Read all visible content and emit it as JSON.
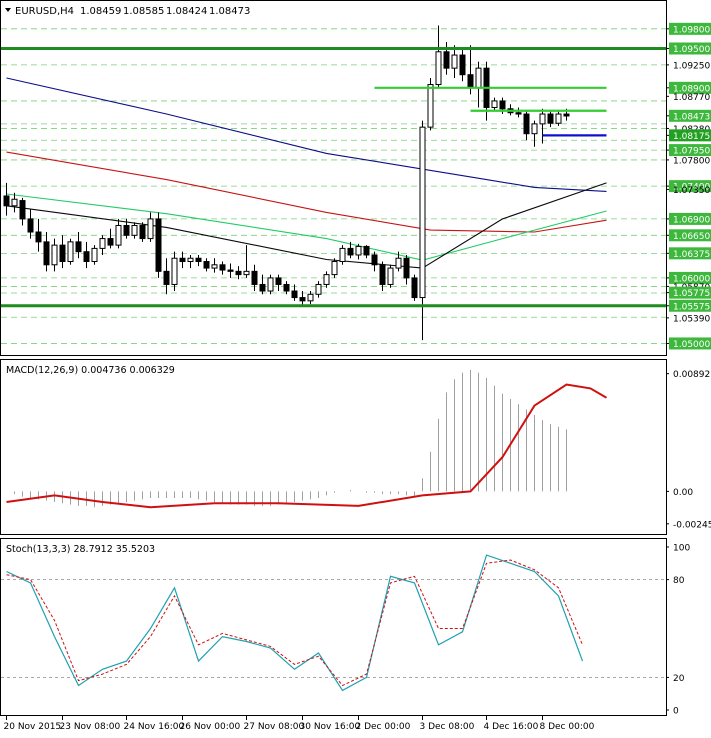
{
  "chart_data": {
    "type": "candlestick",
    "symbol_line": {
      "symbol": "EURUSD,H4",
      "open": "1.08459",
      "high": "1.08585",
      "low": "1.08424",
      "close": "1.08473"
    },
    "price_axis": {
      "ylim": [
        1.049,
        1.0995
      ],
      "ticks": [
        "1.09800",
        "1.09500",
        "1.09250",
        "1.08900",
        "1.08770",
        "1.08473",
        "1.08280",
        "1.08175",
        "1.07950",
        "1.07800",
        "1.07400",
        "1.07350",
        "1.06900",
        "1.06650",
        "1.06375",
        "1.06000",
        "1.05870",
        "1.05775",
        "1.05575",
        "1.05390",
        "1.05000"
      ],
      "highlighted_ticks": [
        "1.09800",
        "1.09500",
        "1.08900",
        "1.08473",
        "1.08175",
        "1.07950",
        "1.07400",
        "1.06900",
        "1.06650",
        "1.06375",
        "1.06000",
        "1.05775",
        "1.05575",
        "1.05000"
      ],
      "dashed_levels": [
        1.098,
        1.0925,
        1.087,
        1.0835,
        1.0828,
        1.081,
        1.0795,
        1.078,
        1.074,
        1.069,
        1.0665,
        1.0637,
        1.06,
        1.0587,
        1.0577,
        1.054,
        1.05
      ]
    },
    "horizontal_levels": [
      {
        "price": 1.095,
        "color": "#1e8c1e",
        "style": "solid-thick",
        "span": "full"
      },
      {
        "price": 1.05575,
        "color": "#1e8c1e",
        "style": "solid-thick",
        "span": "full"
      },
      {
        "price": 1.089,
        "color": "#33cc33",
        "style": "solid",
        "span": [
          46,
          75
        ]
      },
      {
        "price": 1.0855,
        "color": "#33cc33",
        "style": "solid",
        "span": [
          58,
          75
        ]
      },
      {
        "price": 1.08175,
        "color": "#1010cc",
        "style": "solid",
        "span": [
          67,
          75
        ]
      }
    ],
    "candles": [
      [
        1.0725,
        1.0745,
        1.0695,
        1.071
      ],
      [
        1.071,
        1.073,
        1.07,
        1.072
      ],
      [
        1.0718,
        1.0722,
        1.068,
        1.069
      ],
      [
        1.069,
        1.0705,
        1.066,
        1.067
      ],
      [
        1.067,
        1.069,
        1.064,
        1.0655
      ],
      [
        1.0655,
        1.067,
        1.061,
        1.062
      ],
      [
        1.062,
        1.066,
        1.061,
        1.065
      ],
      [
        1.065,
        1.0665,
        1.0615,
        1.0625
      ],
      [
        1.0625,
        1.066,
        1.062,
        1.0655
      ],
      [
        1.0655,
        1.067,
        1.063,
        1.064
      ],
      [
        1.064,
        1.0655,
        1.0615,
        1.0625
      ],
      [
        1.0625,
        1.065,
        1.062,
        1.0645
      ],
      [
        1.0645,
        1.0665,
        1.0635,
        1.066
      ],
      [
        1.066,
        1.0675,
        1.0645,
        1.065
      ],
      [
        1.065,
        1.069,
        1.0645,
        1.068
      ],
      [
        1.068,
        1.069,
        1.066,
        1.0665
      ],
      [
        1.0665,
        1.0685,
        1.066,
        1.068
      ],
      [
        1.068,
        1.0685,
        1.0655,
        1.066
      ],
      [
        1.066,
        1.07,
        1.0655,
        1.069
      ],
      [
        1.069,
        1.07,
        1.06,
        1.061
      ],
      [
        1.061,
        1.063,
        1.0575,
        1.059
      ],
      [
        1.059,
        1.064,
        1.058,
        1.063
      ],
      [
        1.063,
        1.064,
        1.0615,
        1.0625
      ],
      [
        1.0625,
        1.0635,
        1.0615,
        1.063
      ],
      [
        1.063,
        1.0635,
        1.0618,
        1.0625
      ],
      [
        1.0625,
        1.063,
        1.061,
        1.0615
      ],
      [
        1.0615,
        1.063,
        1.0608,
        1.062
      ],
      [
        1.062,
        1.0625,
        1.0605,
        1.0612
      ],
      [
        1.0612,
        1.0622,
        1.06,
        1.061
      ],
      [
        1.061,
        1.0618,
        1.0598,
        1.0605
      ],
      [
        1.0605,
        1.065,
        1.06,
        1.061
      ],
      [
        1.061,
        1.062,
        1.058,
        1.059
      ],
      [
        1.059,
        1.0605,
        1.0575,
        1.058
      ],
      [
        1.058,
        1.0605,
        1.0575,
        1.06
      ],
      [
        1.06,
        1.0605,
        1.058,
        1.059
      ],
      [
        1.059,
        1.0595,
        1.0575,
        1.058
      ],
      [
        1.058,
        1.059,
        1.0565,
        1.057
      ],
      [
        1.057,
        1.058,
        1.0558,
        1.0565
      ],
      [
        1.0565,
        1.058,
        1.056,
        1.0575
      ],
      [
        1.0575,
        1.0595,
        1.057,
        1.059
      ],
      [
        1.059,
        1.061,
        1.0585,
        1.0605
      ],
      [
        1.0605,
        1.063,
        1.06,
        1.0625
      ],
      [
        1.0625,
        1.065,
        1.062,
        1.0645
      ],
      [
        1.0645,
        1.0655,
        1.063,
        1.0635
      ],
      [
        1.0635,
        1.0652,
        1.0628,
        1.0648
      ],
      [
        1.0648,
        1.065,
        1.063,
        1.0635
      ],
      [
        1.0635,
        1.064,
        1.061,
        1.062
      ],
      [
        1.062,
        1.0625,
        1.058,
        1.059
      ],
      [
        1.059,
        1.062,
        1.0585,
        1.0615
      ],
      [
        1.0615,
        1.064,
        1.061,
        1.063
      ],
      [
        1.063,
        1.0635,
        1.059,
        1.06
      ],
      [
        1.06,
        1.0605,
        1.0565,
        1.057
      ],
      [
        1.057,
        1.084,
        1.0505,
        1.083
      ],
      [
        1.083,
        1.0905,
        1.0825,
        1.0895
      ],
      [
        1.0895,
        1.0985,
        1.089,
        1.0945
      ],
      [
        1.0945,
        1.096,
        1.091,
        1.092
      ],
      [
        1.092,
        1.0955,
        1.0905,
        1.094
      ],
      [
        1.094,
        1.095,
        1.09,
        1.091
      ],
      [
        1.091,
        1.0955,
        1.088,
        1.089
      ],
      [
        1.089,
        1.093,
        1.086,
        1.092
      ],
      [
        1.092,
        1.093,
        1.084,
        1.086
      ],
      [
        1.086,
        1.0875,
        1.0855,
        1.087
      ],
      [
        1.087,
        1.0875,
        1.085,
        1.0858
      ],
      [
        1.0858,
        1.0865,
        1.0848,
        1.0852
      ],
      [
        1.0852,
        1.086,
        1.0845,
        1.085
      ],
      [
        1.085,
        1.0855,
        1.081,
        1.082
      ],
      [
        1.082,
        1.084,
        1.08,
        1.0835
      ],
      [
        1.0835,
        1.0858,
        1.0805,
        1.085
      ],
      [
        1.085,
        1.0855,
        1.083,
        1.0836
      ],
      [
        1.0836,
        1.0855,
        1.0832,
        1.085
      ],
      [
        1.085,
        1.0858,
        1.084,
        1.0847
      ]
    ],
    "moving_averages": [
      {
        "color": "#0d0d8c",
        "values": [
          [
            0,
            1.0905
          ],
          [
            20,
            1.085
          ],
          [
            40,
            1.079
          ],
          [
            60,
            1.075
          ],
          [
            66,
            1.0738
          ],
          [
            75,
            1.0732
          ]
        ]
      },
      {
        "color": "#c81414",
        "values": [
          [
            0,
            1.0792
          ],
          [
            20,
            1.075
          ],
          [
            40,
            1.07
          ],
          [
            53,
            1.0673
          ],
          [
            66,
            1.067
          ],
          [
            75,
            1.0688
          ]
        ]
      },
      {
        "color": "#22cc66",
        "values": [
          [
            0,
            1.0728
          ],
          [
            20,
            1.0698
          ],
          [
            40,
            1.066
          ],
          [
            52,
            1.0627
          ],
          [
            62,
            1.066
          ],
          [
            75,
            1.0702
          ]
        ]
      },
      {
        "color": "#0a0a0a",
        "values": [
          [
            0,
            1.071
          ],
          [
            20,
            1.0677
          ],
          [
            40,
            1.0628
          ],
          [
            52,
            1.0615
          ],
          [
            62,
            1.069
          ],
          [
            75,
            1.0745
          ]
        ]
      }
    ],
    "macd": {
      "label": "MACD(12,26,9) 0.004736 0.006329",
      "ylim": [
        -0.003,
        0.0095
      ],
      "ticks": [
        "0.00892",
        "0.00",
        "-0.002455"
      ],
      "histogram_color": "#a0a0a0",
      "signal_color": "#d01010",
      "histogram": [
        0.0,
        -0.0002,
        -0.0004,
        -0.0005,
        -0.0006,
        -0.0007,
        -0.0008,
        -0.0009,
        -0.001,
        -0.0011,
        -0.0011,
        -0.0012,
        -0.0011,
        -0.001,
        -0.0009,
        -0.0008,
        -0.0007,
        -0.0006,
        -0.0005,
        -0.0005,
        -0.0005,
        -0.0005,
        -0.0005,
        -0.0005,
        -0.0006,
        -0.0007,
        -0.0008,
        -0.0009,
        -0.001,
        -0.001,
        -0.001,
        -0.0011,
        -0.0011,
        -0.0011,
        -0.001,
        -0.0009,
        -0.0008,
        -0.0007,
        -0.0006,
        -0.0005,
        -0.0003,
        -0.0001,
        0.0,
        0.0001,
        0.0,
        -0.0001,
        -0.0001,
        -0.0002,
        -0.0002,
        -0.0002,
        -0.0003,
        -0.0004,
        0.001,
        0.003,
        0.0055,
        0.0075,
        0.0085,
        0.009,
        0.0092,
        0.009,
        0.0086,
        0.008,
        0.0074,
        0.007,
        0.0066,
        0.0062,
        0.0058,
        0.0054,
        0.0051,
        0.0049,
        0.0047
      ],
      "signal": [
        [
          0,
          -0.0008
        ],
        [
          6,
          -0.0003
        ],
        [
          12,
          -0.0008
        ],
        [
          18,
          -0.0012
        ],
        [
          26,
          -0.0009
        ],
        [
          34,
          -0.0009
        ],
        [
          44,
          -0.0011
        ],
        [
          52,
          -0.0003
        ],
        [
          58,
          0.0
        ],
        [
          62,
          0.0026
        ],
        [
          66,
          0.0065
        ],
        [
          70,
          0.0081
        ],
        [
          73,
          0.0078
        ],
        [
          75,
          0.0071
        ]
      ]
    },
    "stochastic": {
      "label": "Stoch(13,3,3) 28.7912 35.5203",
      "ylim": [
        0,
        100
      ],
      "ticks": [
        "100",
        "80",
        "20",
        "0"
      ],
      "levels": [
        80,
        20
      ],
      "main_color": "#20a0b0",
      "signal_color": "#d01010",
      "main": [
        [
          0,
          85
        ],
        [
          3,
          78
        ],
        [
          6,
          45
        ],
        [
          9,
          15
        ],
        [
          12,
          25
        ],
        [
          15,
          30
        ],
        [
          18,
          50
        ],
        [
          21,
          75
        ],
        [
          24,
          30
        ],
        [
          27,
          45
        ],
        [
          30,
          42
        ],
        [
          33,
          38
        ],
        [
          36,
          25
        ],
        [
          39,
          35
        ],
        [
          42,
          12
        ],
        [
          45,
          20
        ],
        [
          48,
          82
        ],
        [
          51,
          78
        ],
        [
          54,
          40
        ],
        [
          57,
          48
        ],
        [
          60,
          95
        ],
        [
          63,
          90
        ],
        [
          66,
          85
        ],
        [
          69,
          70
        ],
        [
          72,
          30
        ]
      ],
      "signal": [
        [
          0,
          83
        ],
        [
          3,
          80
        ],
        [
          6,
          55
        ],
        [
          9,
          18
        ],
        [
          12,
          22
        ],
        [
          15,
          28
        ],
        [
          18,
          45
        ],
        [
          21,
          70
        ],
        [
          24,
          40
        ],
        [
          27,
          47
        ],
        [
          30,
          43
        ],
        [
          33,
          39
        ],
        [
          36,
          28
        ],
        [
          39,
          33
        ],
        [
          42,
          15
        ],
        [
          45,
          22
        ],
        [
          48,
          78
        ],
        [
          51,
          82
        ],
        [
          54,
          50
        ],
        [
          57,
          50
        ],
        [
          60,
          90
        ],
        [
          63,
          92
        ],
        [
          66,
          86
        ],
        [
          69,
          75
        ],
        [
          72,
          40
        ]
      ]
    },
    "time_axis": {
      "labels": [
        {
          "bar": 0,
          "label": "20 Nov 2015"
        },
        {
          "bar": 7,
          "label": "23 Nov 08:00"
        },
        {
          "bar": 15,
          "label": "24 Nov 16:00"
        },
        {
          "bar": 22,
          "label": "26 Nov 00:00"
        },
        {
          "bar": 30,
          "label": "27 Nov 08:00"
        },
        {
          "bar": 37,
          "label": "30 Nov 16:00"
        },
        {
          "bar": 44,
          "label": "2 Dec 00:00"
        },
        {
          "bar": 52,
          "label": "3 Dec 08:00"
        },
        {
          "bar": 60,
          "label": "4 Dec 16:00"
        },
        {
          "bar": 67,
          "label": "8 Dec 00:00"
        }
      ]
    }
  }
}
